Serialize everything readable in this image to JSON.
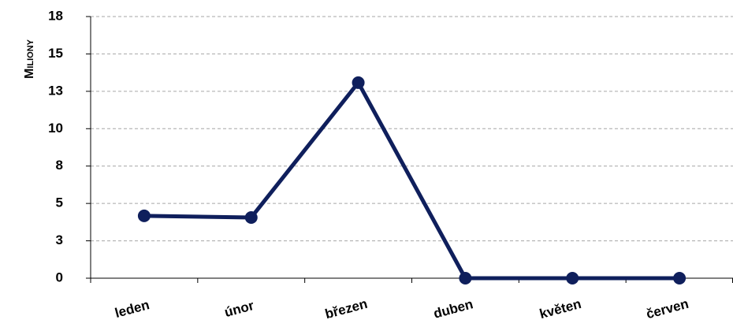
{
  "chart_data": {
    "type": "line",
    "y_label": "Miliony",
    "categories": [
      "leden",
      "únor",
      "březen",
      "duben",
      "květen",
      "červen"
    ],
    "series": [
      {
        "name": "Miliony",
        "color": "#0f1f5c",
        "values": [
          4.17,
          4.06,
          13.08,
          0,
          0,
          0
        ]
      }
    ],
    "ylim": [
      0,
      17.5
    ],
    "yticks": [
      0,
      {
        "value": 2.5,
        "label": "3"
      },
      5,
      {
        "value": 7.5,
        "label": "8"
      },
      10,
      {
        "value": 12.5,
        "label": "13"
      },
      15,
      {
        "value": 17.5,
        "label": "18"
      }
    ],
    "grid": true
  }
}
